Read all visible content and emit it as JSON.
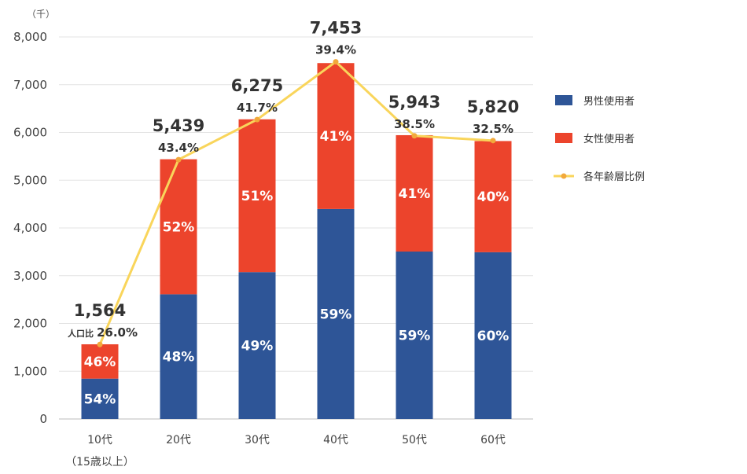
{
  "chart_data": {
    "type": "bar",
    "stacked": true,
    "unit_label": "（千）",
    "categories": [
      "10代",
      "20代",
      "30代",
      "40代",
      "50代",
      "60代"
    ],
    "category_note": "（15歳以上）",
    "ylim": [
      0,
      8000
    ],
    "yticks": [
      "0",
      "1,000",
      "2,000",
      "3,000",
      "4,000",
      "5,000",
      "6,000",
      "7,000",
      "8,000"
    ],
    "grid": true,
    "legend_position": "right",
    "totals": [
      1564,
      5439,
      6275,
      7453,
      5943,
      5820
    ],
    "total_labels": [
      "1,564",
      "5,439",
      "6,275",
      "7,453",
      "5,943",
      "5,820"
    ],
    "series": [
      {
        "name": "男性使用者",
        "color": "#2e5597",
        "values": [
          845,
          2611,
          3075,
          4397,
          3506,
          3492
        ],
        "labels": [
          "54%",
          "48%",
          "49%",
          "59%",
          "59%",
          "60%"
        ]
      },
      {
        "name": "女性使用者",
        "color": "#ec442c",
        "values": [
          719,
          2828,
          3200,
          3056,
          2437,
          2328
        ],
        "labels": [
          "46%",
          "52%",
          "51%",
          "41%",
          "41%",
          "40%"
        ]
      }
    ],
    "line_series": {
      "name": "各年齢層比例",
      "color": "#f9d55b",
      "marker_color": "#f2a93b",
      "values": [
        1560,
        5430,
        6270,
        7480,
        5930,
        5830
      ],
      "labels": [
        "26.0%",
        "43.4%",
        "41.7%",
        "39.4%",
        "38.5%",
        "32.5%"
      ],
      "first_label_prefix": "人口比"
    }
  }
}
